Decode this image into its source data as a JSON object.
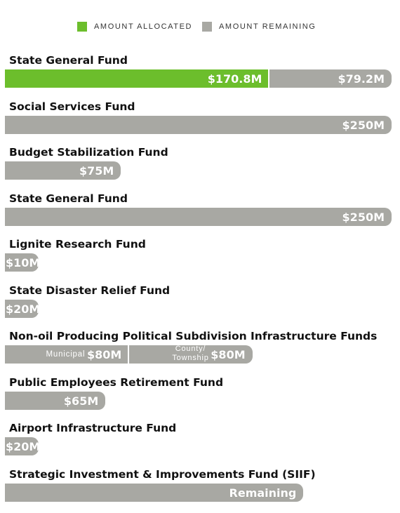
{
  "colors": {
    "allocated": "#6cbe2c",
    "remaining": "#a8a8a3",
    "text": "#111111"
  },
  "legend": [
    {
      "label": "AMOUNT ALLOCATED",
      "color": "#6cbe2c"
    },
    {
      "label": "AMOUNT REMAINING",
      "color": "#a8a8a3"
    }
  ],
  "chart_data": {
    "type": "bar",
    "orientation": "horizontal",
    "unit": "$M",
    "legend_position": "top-center",
    "funds": [
      {
        "name": "State General Fund",
        "segments": [
          {
            "kind": "allocated",
            "value": 170.8,
            "label": "$170.8M"
          },
          {
            "kind": "remaining",
            "value": 79.2,
            "label": "$79.2M"
          }
        ]
      },
      {
        "name": "Social Services Fund",
        "segments": [
          {
            "kind": "remaining",
            "value": 250,
            "label": "$250M"
          }
        ]
      },
      {
        "name": "Budget Stabilization Fund",
        "segments": [
          {
            "kind": "remaining",
            "value": 75,
            "label": "$75M"
          }
        ]
      },
      {
        "name": "State General Fund",
        "segments": [
          {
            "kind": "remaining",
            "value": 250,
            "label": "$250M"
          }
        ]
      },
      {
        "name": "Lignite Research Fund",
        "segments": [
          {
            "kind": "remaining",
            "value": 10,
            "label": "$10M"
          }
        ]
      },
      {
        "name": "State Disaster Relief Fund",
        "segments": [
          {
            "kind": "remaining",
            "value": 20,
            "label": "$20M"
          }
        ]
      },
      {
        "name": "Non-oil Producing Political Subdivision Infrastructure Funds",
        "segments": [
          {
            "kind": "remaining",
            "value": 80,
            "label": "$80M",
            "sublabel": [
              "Municipal"
            ]
          },
          {
            "kind": "remaining",
            "value": 80,
            "label": "$80M",
            "sublabel": [
              "County/",
              "Township"
            ]
          }
        ]
      },
      {
        "name": "Public Employees Retirement Fund",
        "segments": [
          {
            "kind": "remaining",
            "value": 65,
            "label": "$65M"
          }
        ]
      },
      {
        "name": "Airport Infrastructure Fund",
        "segments": [
          {
            "kind": "remaining",
            "value": 20,
            "label": "$20M"
          }
        ]
      },
      {
        "name": "Strategic Investment & Improvements Fund (SIIF)",
        "segments": [
          {
            "kind": "remaining",
            "value": 193,
            "label": "Remaining"
          }
        ]
      }
    ]
  }
}
